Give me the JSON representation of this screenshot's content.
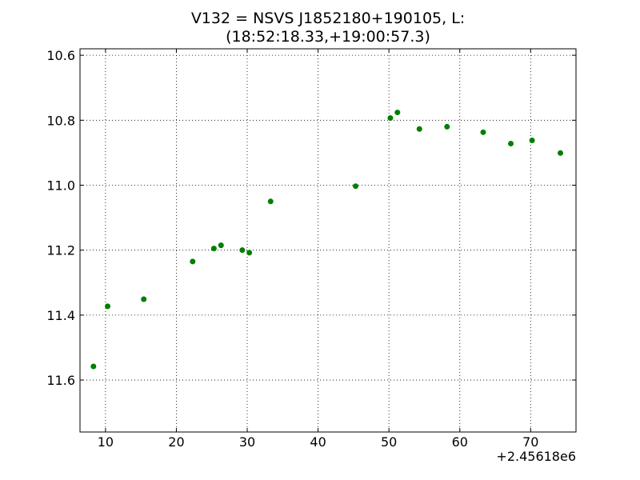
{
  "chart_data": {
    "type": "scatter",
    "title": [
      "V132 = NSVS J1852180+190105, L:",
      "(18:52:18.33,+19:00:57.3)"
    ],
    "x_offset_label": "+2.45618e6",
    "x": [
      8.3,
      10.3,
      15.4,
      22.3,
      25.3,
      26.3,
      29.3,
      30.3,
      33.3,
      45.3,
      50.2,
      51.2,
      54.3,
      58.2,
      63.3,
      67.2,
      70.2,
      74.2
    ],
    "values": [
      11.558,
      11.373,
      11.351,
      11.235,
      11.195,
      11.185,
      11.2,
      11.208,
      11.05,
      11.003,
      10.793,
      10.776,
      10.827,
      10.82,
      10.837,
      10.872,
      10.862,
      10.901
    ],
    "color": "#007f00",
    "xlim": [
      6.4,
      76.4
    ],
    "xticks": [
      10,
      20,
      30,
      40,
      50,
      60,
      70
    ],
    "ylim": [
      11.76,
      10.58
    ],
    "yticks": [
      10.6,
      10.8,
      {
        "value": 11,
        "label": "11.0"
      },
      11.2,
      11.4,
      11.6
    ],
    "grid": true
  }
}
